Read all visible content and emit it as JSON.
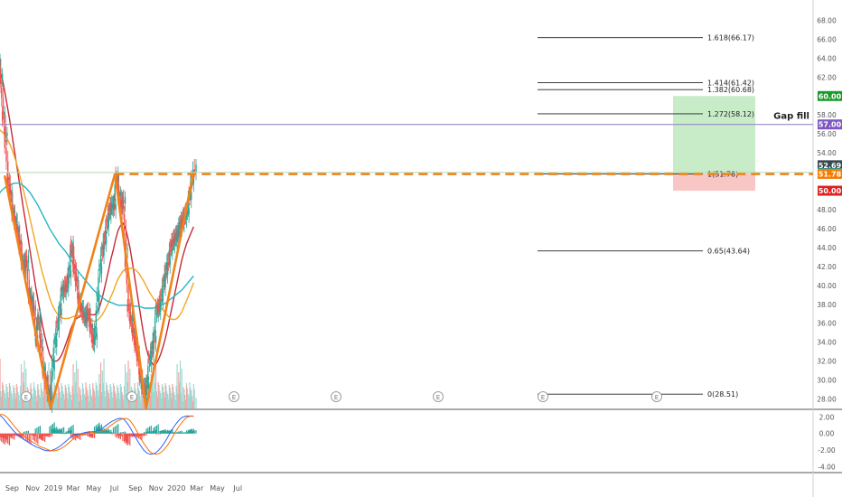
{
  "chart_data": {
    "type": "candlestick",
    "x_ticks": [
      "Sep",
      "Nov",
      "2019",
      "Mar",
      "May",
      "Jul",
      "Sep",
      "Nov",
      "2020",
      "Mar",
      "May",
      "Jul"
    ],
    "y_ticks": [
      "68.00",
      "66.00",
      "64.00",
      "62.00",
      "60.00",
      "58.00",
      "56.00",
      "54.00",
      "52.00",
      "50.00",
      "48.00",
      "46.00",
      "44.00",
      "42.00",
      "40.00",
      "38.00",
      "36.00",
      "34.00",
      "32.00",
      "30.00",
      "28.00"
    ],
    "ylim": [
      27,
      69
    ],
    "macd_ticks": [
      "2.00",
      "0.00",
      "-2.00",
      "-4.00"
    ],
    "macd_ylim": [
      -4.6,
      2.8
    ],
    "price_badges": [
      {
        "value": "60.00",
        "price": 60.0,
        "color": "#1a9a2a"
      },
      {
        "value": "57.00",
        "price": 57.0,
        "color": "#7e57c2"
      },
      {
        "value": "52.69",
        "price": 52.69,
        "color": "#37474f"
      },
      {
        "value": "51.85",
        "price": 51.85,
        "color": "#26a69a"
      },
      {
        "value": "51.78",
        "price": 51.78,
        "color": "#f57c00"
      },
      {
        "value": "50.00",
        "price": 50.0,
        "color": "#e0201f"
      }
    ],
    "fib_levels": [
      {
        "label": "1.618(66.17)",
        "price": 66.17
      },
      {
        "label": "1.414(61.42)",
        "price": 61.42
      },
      {
        "label": "1.382(60.68)",
        "price": 60.68
      },
      {
        "label": "1.272(58.12)",
        "price": 58.12
      },
      {
        "label": "1(51.78)",
        "price": 51.78
      },
      {
        "label": "0.65(43.64)",
        "price": 43.64
      },
      {
        "label": "0(28.51)",
        "price": 28.51
      }
    ],
    "gap_fill": {
      "label": "Gap fill",
      "price": 57.0
    },
    "position": {
      "target": 60.0,
      "entry": 51.78,
      "stop": 50.0
    },
    "resistance": 51.78,
    "pattern_points": [
      {
        "date": "2018-08-10",
        "price": 51.6
      },
      {
        "date": "2018-12-24",
        "price": 27.0
      },
      {
        "date": "2019-07-03",
        "price": 51.8
      },
      {
        "date": "2019-10-03",
        "price": 27.0
      },
      {
        "date": "2020-02-20",
        "price": 51.8
      }
    ],
    "event_markers": [
      "E",
      "E",
      "E",
      "E",
      "E",
      "E",
      "E"
    ],
    "series": [
      {
        "type": "candlestick",
        "x": [
          "2018-07-20",
          "2018-07-27",
          "2018-08-03",
          "2018-08-10",
          "2018-08-17",
          "2018-08-24",
          "2018-08-31",
          "2018-09-07",
          "2018-09-14",
          "2018-09-21",
          "2018-09-28",
          "2018-10-05",
          "2018-10-12",
          "2018-10-19",
          "2018-10-26",
          "2018-11-02",
          "2018-11-09",
          "2018-11-16",
          "2018-11-23",
          "2018-11-30",
          "2018-12-07",
          "2018-12-14",
          "2018-12-21",
          "2018-12-28",
          "2019-01-04",
          "2019-01-11",
          "2019-01-18",
          "2019-01-25",
          "2019-02-01",
          "2019-02-08",
          "2019-02-15",
          "2019-02-22",
          "2019-03-01",
          "2019-03-08",
          "2019-03-15",
          "2019-03-22",
          "2019-03-29",
          "2019-04-05",
          "2019-04-12",
          "2019-04-19",
          "2019-04-26",
          "2019-05-03",
          "2019-05-10",
          "2019-05-17",
          "2019-05-24",
          "2019-05-31",
          "2019-06-07",
          "2019-06-14",
          "2019-06-21",
          "2019-06-28",
          "2019-07-05",
          "2019-07-12",
          "2019-07-19",
          "2019-07-26",
          "2019-08-02",
          "2019-08-09",
          "2019-08-16",
          "2019-08-23",
          "2019-08-30",
          "2019-09-06",
          "2019-09-13",
          "2019-09-20",
          "2019-09-27",
          "2019-10-04",
          "2019-10-11",
          "2019-10-18",
          "2019-10-25",
          "2019-11-01",
          "2019-11-08",
          "2019-11-15",
          "2019-11-22",
          "2019-11-29",
          "2019-12-06",
          "2019-12-13",
          "2019-12-20",
          "2019-12-27",
          "2020-01-03",
          "2020-01-10",
          "2020-01-17",
          "2020-01-24",
          "2020-01-31",
          "2020-02-07",
          "2020-02-14",
          "2020-02-21"
        ],
        "close": [
          63.5,
          62,
          58,
          55.8,
          51,
          49.8,
          47.6,
          46.8,
          45.8,
          44.5,
          42.4,
          41.8,
          42.8,
          38.8,
          38.4,
          37.5,
          33.8,
          36.6,
          34,
          31,
          30,
          28.6,
          27.6,
          31.6,
          34,
          35.8,
          37.2,
          39.5,
          39.6,
          40,
          41.2,
          44.3,
          41.8,
          40.6,
          38.3,
          37.5,
          36.8,
          36.3,
          37.2,
          35.6,
          33.9,
          34.6,
          38.5,
          41.8,
          43.6,
          44.8,
          46.5,
          47.8,
          48.4,
          48.2,
          51.6,
          49.5,
          48.3,
          49,
          43.5,
          37.6,
          36.4,
          35.1,
          33.8,
          32.7,
          30.3,
          29.3,
          28.6,
          29.4,
          32.2,
          33.1,
          34.3,
          37.6,
          37.5,
          38.7,
          40.2,
          41.5,
          42.5,
          44,
          44.6,
          45,
          45.4,
          46.4,
          46.8,
          47.3,
          47.8,
          49.5,
          51.2,
          52.4
        ]
      },
      {
        "name": "",
        "type": "line",
        "color": "#c62839",
        "values": [
          63,
          62.6,
          61.8,
          60.5,
          59.1,
          57.6,
          56,
          54.4,
          52.8,
          51.2,
          49.6,
          48,
          46.4,
          44.8,
          43.2,
          41.6,
          40,
          38.6,
          37.2,
          35.8,
          34.6,
          33.6,
          32.7,
          32.2,
          32,
          32,
          32.2,
          32.6,
          33.2,
          33.9,
          34.6,
          35.4,
          36,
          36.4,
          36.6,
          36.7,
          36.8,
          36.9,
          36.9,
          36.9,
          36.9,
          36.9,
          37.1,
          37.6,
          38.4,
          39.4,
          40.5,
          41.6,
          42.8,
          43.8,
          44.9,
          45.8,
          46.3,
          46.6,
          46.2,
          45.2,
          44,
          42.5,
          40.9,
          39.3,
          37.7,
          36.1,
          34.6,
          33.3,
          32.4,
          31.9,
          31.6,
          31.7,
          32.1,
          32.7,
          33.5,
          34.4,
          35.5,
          36.7,
          37.9,
          39.1,
          40.3,
          41.5,
          42.7,
          43.6,
          44.4,
          45,
          45.6,
          46.2
        ]
      },
      {
        "name": "",
        "type": "line",
        "color": "#f5a623",
        "values": [
          56.5,
          56.4,
          56.2,
          55.9,
          55.5,
          55,
          54.4,
          53.7,
          52.9,
          52,
          51,
          50,
          48.9,
          47.8,
          46.7,
          45.6,
          44.5,
          43.4,
          42.3,
          41.3,
          40.4,
          39.5,
          38.7,
          38,
          37.5,
          37.1,
          36.8,
          36.6,
          36.5,
          36.5,
          36.5,
          36.6,
          36.7,
          36.8,
          36.8,
          36.8,
          36.7,
          36.6,
          36.5,
          36.4,
          36.3,
          36.2,
          36.3,
          36.5,
          36.8,
          37.2,
          37.7,
          38.2,
          38.8,
          39.4,
          40.1,
          40.7,
          41.1,
          41.5,
          41.7,
          41.8,
          41.8,
          41.8,
          41.7,
          41.5,
          41.2,
          40.8,
          40.4,
          39.9,
          39.4,
          39,
          38.6,
          38.3,
          38,
          37.7,
          37.4,
          37.1,
          36.8,
          36.5,
          36.4,
          36.4,
          36.5,
          36.8,
          37.2,
          37.8,
          38.4,
          39,
          39.6,
          40.3
        ]
      },
      {
        "name": "",
        "type": "line",
        "color": "#26b5c8",
        "values": [
          49.5,
          49.8,
          50.1,
          50.3,
          50.5,
          50.6,
          50.7,
          50.8,
          50.8,
          50.8,
          50.7,
          50.5,
          50.3,
          50,
          49.7,
          49.3,
          48.9,
          48.5,
          48,
          47.5,
          47,
          46.5,
          46,
          45.6,
          45.2,
          44.8,
          44.4,
          44.1,
          43.8,
          43.5,
          43.1,
          42.7,
          42.3,
          41.9,
          41.5,
          41.2,
          40.9,
          40.6,
          40.3,
          40,
          39.7,
          39.4,
          39.2,
          39,
          38.8,
          38.6,
          38.4,
          38.3,
          38.2,
          38.1,
          38,
          37.9,
          37.9,
          37.9,
          37.9,
          37.9,
          37.9,
          37.9,
          37.8,
          37.8,
          37.8,
          37.7,
          37.6,
          37.6,
          37.6,
          37.6,
          37.6,
          37.7,
          37.8,
          37.9,
          38,
          38.1,
          38.3,
          38.5,
          38.7,
          38.9,
          39.1,
          39.3,
          39.5,
          39.8,
          40.1,
          40.4,
          40.7,
          41
        ]
      }
    ]
  }
}
